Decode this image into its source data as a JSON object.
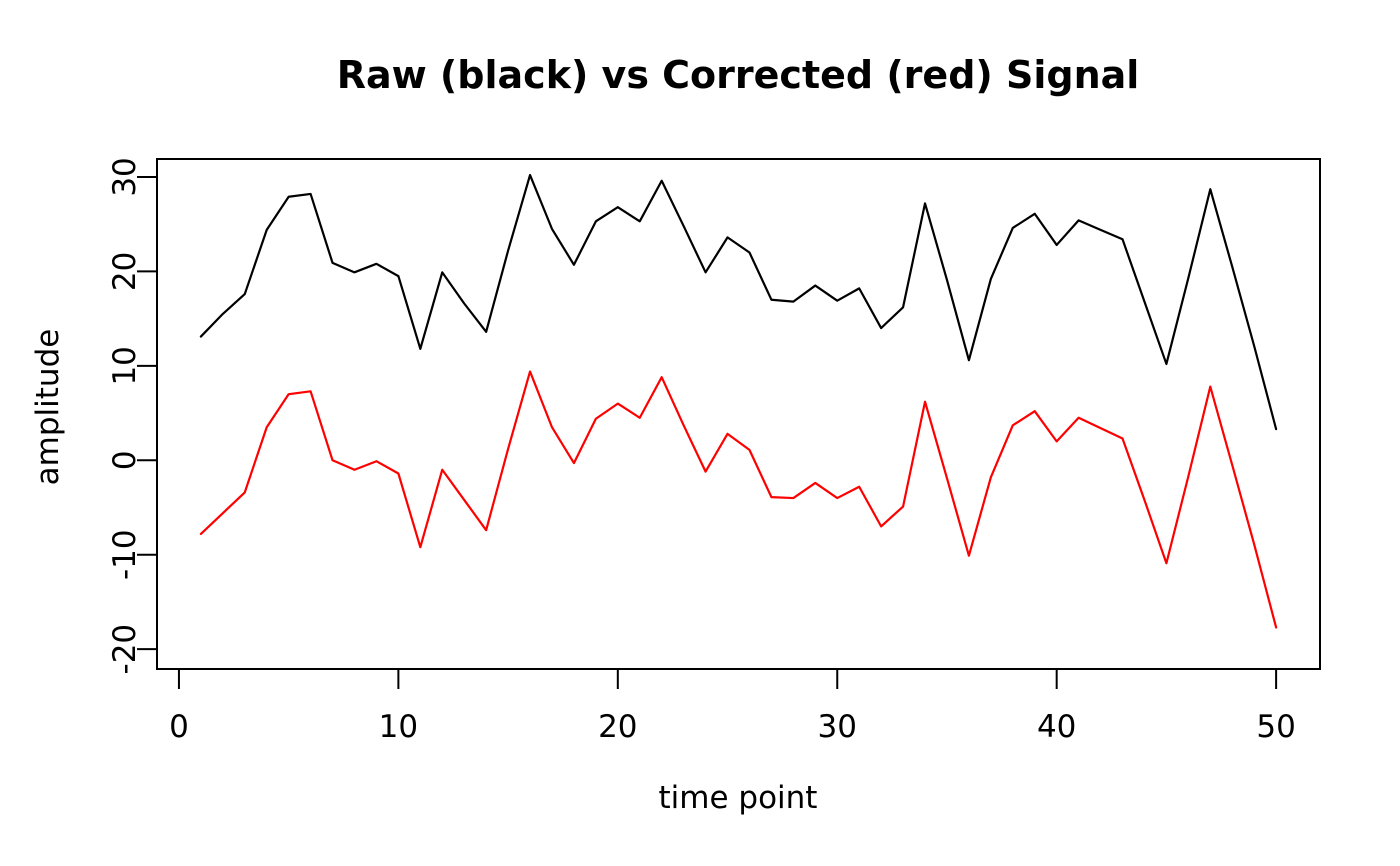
{
  "chart_data": {
    "type": "line",
    "title": "Raw (black) vs Corrected (red) Signal",
    "xlabel": "time point",
    "ylabel": "amplitude",
    "xlim": [
      -1.0,
      52.0
    ],
    "ylim": [
      -22.1,
      31.9
    ],
    "xticks": [
      0,
      10,
      20,
      30,
      40,
      50
    ],
    "yticks": [
      -20,
      -10,
      0,
      10,
      20,
      30
    ],
    "grid": false,
    "legend_position": "none",
    "x": [
      1,
      2,
      3,
      4,
      5,
      6,
      7,
      8,
      9,
      10,
      11,
      12,
      13,
      14,
      15,
      16,
      17,
      18,
      19,
      20,
      21,
      22,
      23,
      24,
      25,
      26,
      27,
      28,
      29,
      30,
      31,
      32,
      33,
      34,
      35,
      36,
      37,
      38,
      39,
      40,
      41,
      42,
      43,
      44,
      45,
      46,
      47,
      48,
      49,
      50
    ],
    "series": [
      {
        "name": "Raw",
        "color": "#000000",
        "values": [
          13.1,
          15.5,
          17.6,
          24.4,
          27.9,
          28.2,
          20.9,
          19.9,
          20.8,
          19.5,
          11.8,
          19.9,
          16.6,
          13.6,
          22.2,
          30.2,
          24.5,
          20.7,
          25.3,
          26.8,
          25.3,
          29.6,
          24.8,
          19.9,
          23.6,
          22.0,
          17.0,
          16.8,
          18.5,
          16.9,
          18.2,
          14.0,
          16.2,
          27.2,
          19.1,
          10.6,
          19.2,
          24.6,
          26.1,
          22.8,
          25.4,
          24.4,
          23.4,
          16.8,
          10.2,
          19.3,
          28.7,
          20.5,
          12.1,
          3.3
        ]
      },
      {
        "name": "Corrected",
        "color": "#ff0000",
        "values": [
          -7.8,
          -5.6,
          -3.4,
          3.5,
          7.0,
          7.3,
          0.0,
          -1.0,
          -0.1,
          -1.4,
          -9.2,
          -1.0,
          -4.2,
          -7.4,
          1.2,
          9.4,
          3.5,
          -0.3,
          4.4,
          6.0,
          4.5,
          8.8,
          3.7,
          -1.2,
          2.8,
          1.1,
          -3.9,
          -4.0,
          -2.4,
          -4.0,
          -2.8,
          -7.0,
          -4.9,
          6.2,
          -1.9,
          -10.1,
          -1.8,
          3.7,
          5.2,
          2.0,
          4.5,
          3.4,
          2.3,
          -4.2,
          -10.9,
          -1.7,
          7.8,
          -0.5,
          -8.9,
          -17.7
        ]
      }
    ],
    "colors": {
      "background": "#ffffff",
      "axis": "#000000",
      "raw_series": "#000000",
      "corrected_series": "#ff0000"
    }
  }
}
